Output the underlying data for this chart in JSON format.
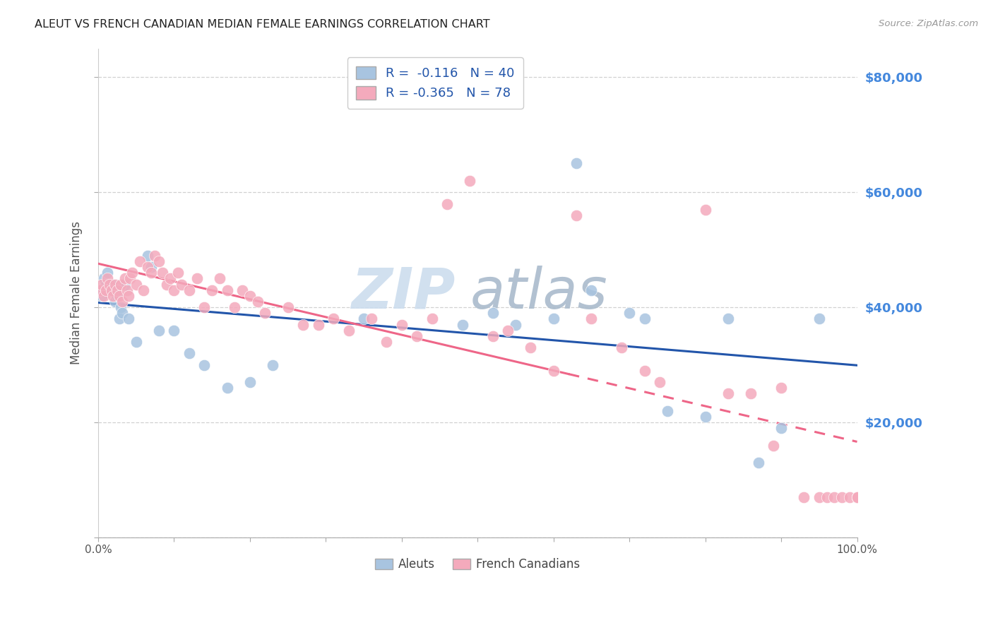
{
  "title": "ALEUT VS FRENCH CANADIAN MEDIAN FEMALE EARNINGS CORRELATION CHART",
  "source": "Source: ZipAtlas.com",
  "ylabel": "Median Female Earnings",
  "y_ticks": [
    0,
    20000,
    40000,
    60000,
    80000
  ],
  "y_tick_labels": [
    "",
    "$20,000",
    "$40,000",
    "$60,000",
    "$80,000"
  ],
  "x_range": [
    0.0,
    100.0
  ],
  "y_range": [
    0,
    85000
  ],
  "aleut_R": -0.116,
  "aleut_N": 40,
  "french_R": -0.365,
  "french_N": 78,
  "aleut_color": "#A8C4E0",
  "french_color": "#F4AABC",
  "aleut_line_color": "#2255AA",
  "french_line_color": "#EE6688",
  "background_color": "#FFFFFF",
  "grid_color": "#CCCCCC",
  "title_color": "#222222",
  "right_axis_color": "#4488DD",
  "legend_text_color": "#2255AA",
  "aleut_x": [
    0.3,
    0.5,
    0.8,
    1.0,
    1.2,
    1.5,
    1.8,
    2.0,
    2.2,
    2.5,
    2.8,
    3.0,
    3.2,
    3.5,
    4.0,
    5.0,
    6.5,
    7.0,
    8.0,
    10.0,
    12.0,
    14.0,
    17.0,
    20.0,
    23.0,
    35.0,
    48.0,
    52.0,
    55.0,
    60.0,
    63.0,
    65.0,
    70.0,
    72.0,
    75.0,
    80.0,
    83.0,
    87.0,
    90.0,
    95.0
  ],
  "aleut_y": [
    43000,
    42000,
    45000,
    44000,
    46000,
    43000,
    44000,
    43000,
    41000,
    42000,
    38000,
    40000,
    39000,
    44000,
    38000,
    34000,
    49000,
    47000,
    36000,
    36000,
    32000,
    30000,
    26000,
    27000,
    30000,
    38000,
    37000,
    39000,
    37000,
    38000,
    65000,
    43000,
    39000,
    38000,
    22000,
    21000,
    38000,
    13000,
    19000,
    38000
  ],
  "french_x": [
    0.3,
    0.5,
    0.8,
    1.0,
    1.2,
    1.5,
    1.8,
    2.0,
    2.2,
    2.5,
    2.8,
    3.0,
    3.2,
    3.5,
    3.8,
    4.0,
    4.2,
    4.5,
    5.0,
    5.5,
    6.0,
    6.5,
    7.0,
    7.5,
    8.0,
    8.5,
    9.0,
    9.5,
    10.0,
    10.5,
    11.0,
    12.0,
    13.0,
    14.0,
    15.0,
    16.0,
    17.0,
    18.0,
    19.0,
    20.0,
    21.0,
    22.0,
    25.0,
    27.0,
    29.0,
    31.0,
    33.0,
    36.0,
    38.0,
    40.0,
    42.0,
    44.0,
    46.0,
    49.0,
    52.0,
    54.0,
    57.0,
    60.0,
    63.0,
    65.0,
    69.0,
    72.0,
    74.0,
    80.0,
    83.0,
    86.0,
    89.0,
    90.0,
    93.0,
    95.0,
    96.0,
    97.0,
    98.0,
    99.0,
    100.0,
    100.0,
    100.0,
    100.0
  ],
  "french_y": [
    43000,
    44000,
    42000,
    43000,
    45000,
    44000,
    43000,
    42000,
    44000,
    43000,
    42000,
    44000,
    41000,
    45000,
    43000,
    42000,
    45000,
    46000,
    44000,
    48000,
    43000,
    47000,
    46000,
    49000,
    48000,
    46000,
    44000,
    45000,
    43000,
    46000,
    44000,
    43000,
    45000,
    40000,
    43000,
    45000,
    43000,
    40000,
    43000,
    42000,
    41000,
    39000,
    40000,
    37000,
    37000,
    38000,
    36000,
    38000,
    34000,
    37000,
    35000,
    38000,
    58000,
    62000,
    35000,
    36000,
    33000,
    29000,
    56000,
    38000,
    33000,
    29000,
    27000,
    57000,
    25000,
    25000,
    16000,
    26000,
    7000,
    7000,
    7000,
    7000,
    7000,
    7000,
    7000,
    7000,
    7000,
    7000
  ],
  "french_solid_end_x": 62.0,
  "watermark_zip_color": "#CCDDEE",
  "watermark_atlas_color": "#AABBCC"
}
